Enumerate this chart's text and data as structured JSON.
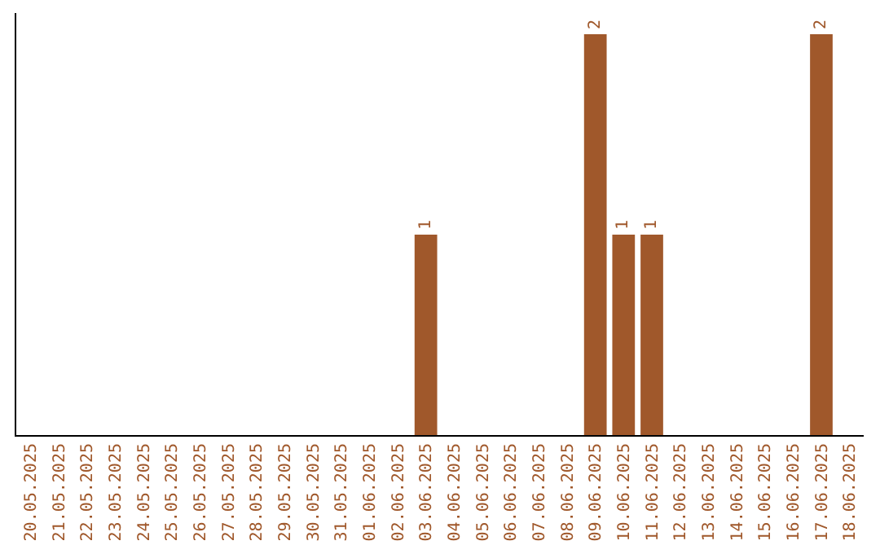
{
  "chart_data": {
    "type": "bar",
    "categories": [
      "20.05.2025",
      "21.05.2025",
      "22.05.2025",
      "23.05.2025",
      "24.05.2025",
      "25.05.2025",
      "26.05.2025",
      "27.05.2025",
      "28.05.2025",
      "29.05.2025",
      "30.05.2025",
      "31.05.2025",
      "01.06.2025",
      "02.06.2025",
      "03.06.2025",
      "04.06.2025",
      "05.06.2025",
      "06.06.2025",
      "07.06.2025",
      "08.06.2025",
      "09.06.2025",
      "10.06.2025",
      "11.06.2025",
      "12.06.2025",
      "13.06.2025",
      "14.06.2025",
      "15.06.2025",
      "16.06.2025",
      "17.06.2025",
      "18.06.2025"
    ],
    "values": [
      null,
      null,
      null,
      null,
      null,
      null,
      null,
      null,
      null,
      null,
      null,
      null,
      null,
      null,
      1,
      null,
      null,
      null,
      null,
      null,
      2,
      1,
      1,
      null,
      null,
      null,
      null,
      null,
      2,
      null
    ],
    "data_labels": true,
    "color": "#a0582b",
    "grid": false,
    "legend": false
  }
}
